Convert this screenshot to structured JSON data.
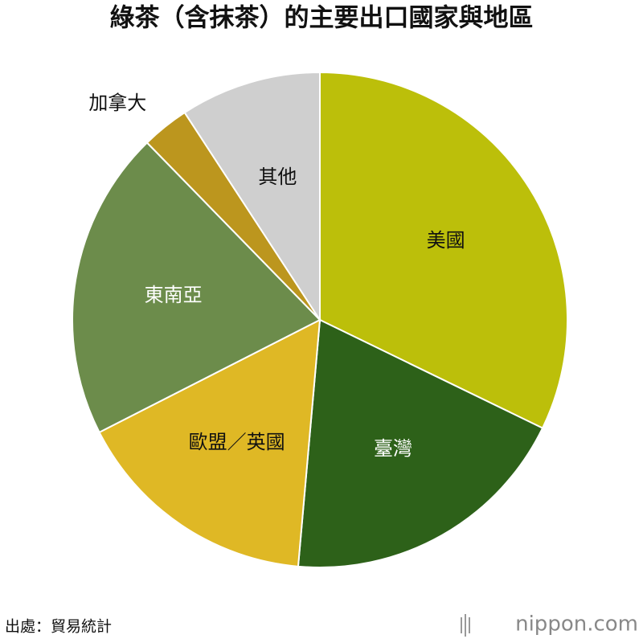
{
  "chart_data": {
    "type": "pie",
    "title": "綠茶（含抹茶）的主要出口國家與地區",
    "categories": [
      "美國",
      "臺灣",
      "歐盟／英國",
      "東南亞",
      "加拿大",
      "其他"
    ],
    "values": [
      32.2,
      19.2,
      16.1,
      20.2,
      3.1,
      9.2
    ],
    "colors": [
      "#bcbf0a",
      "#2d6119",
      "#dfb825",
      "#6c8c4b",
      "#bc961e",
      "#cfcfcf"
    ],
    "start_angle": 0,
    "direction": "clockwise"
  },
  "footer": {
    "source": "出處：貿易統計",
    "brand": "nippon.com"
  }
}
